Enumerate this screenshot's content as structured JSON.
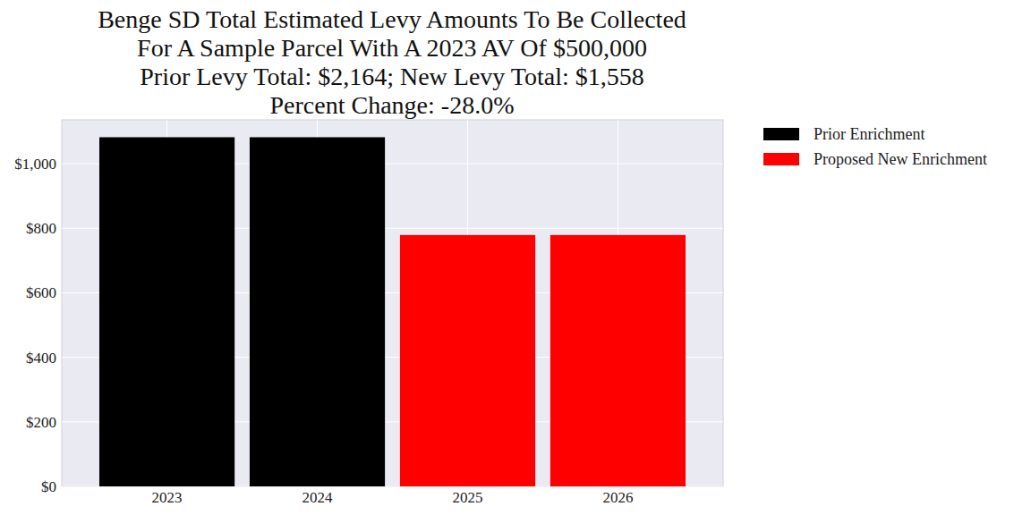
{
  "chart_data": {
    "type": "bar",
    "title": "Benge SD Total Estimated Levy Amounts To Be Collected\nFor A Sample Parcel With A 2023 AV Of $500,000\nPrior Levy Total:  $2,164; New Levy Total: $1,558\nPercent Change: -28.0%",
    "categories": [
      "2023",
      "2024",
      "2025",
      "2026"
    ],
    "series": [
      {
        "name": "Prior Enrichment",
        "color": "#000000",
        "values": [
          1082,
          1082,
          null,
          null
        ]
      },
      {
        "name": "Proposed New Enrichment",
        "color": "#ff0000",
        "values": [
          null,
          null,
          779,
          779
        ]
      }
    ],
    "ylim": [
      0,
      1136
    ],
    "yticks": [
      {
        "value": 0,
        "label": "$0"
      },
      {
        "value": 200,
        "label": "$200"
      },
      {
        "value": 400,
        "label": "$400"
      },
      {
        "value": 600,
        "label": "$600"
      },
      {
        "value": 800,
        "label": "$800"
      },
      {
        "value": 1000,
        "label": "$1,000"
      }
    ],
    "grid": true,
    "legend": "outside-upper-right"
  }
}
